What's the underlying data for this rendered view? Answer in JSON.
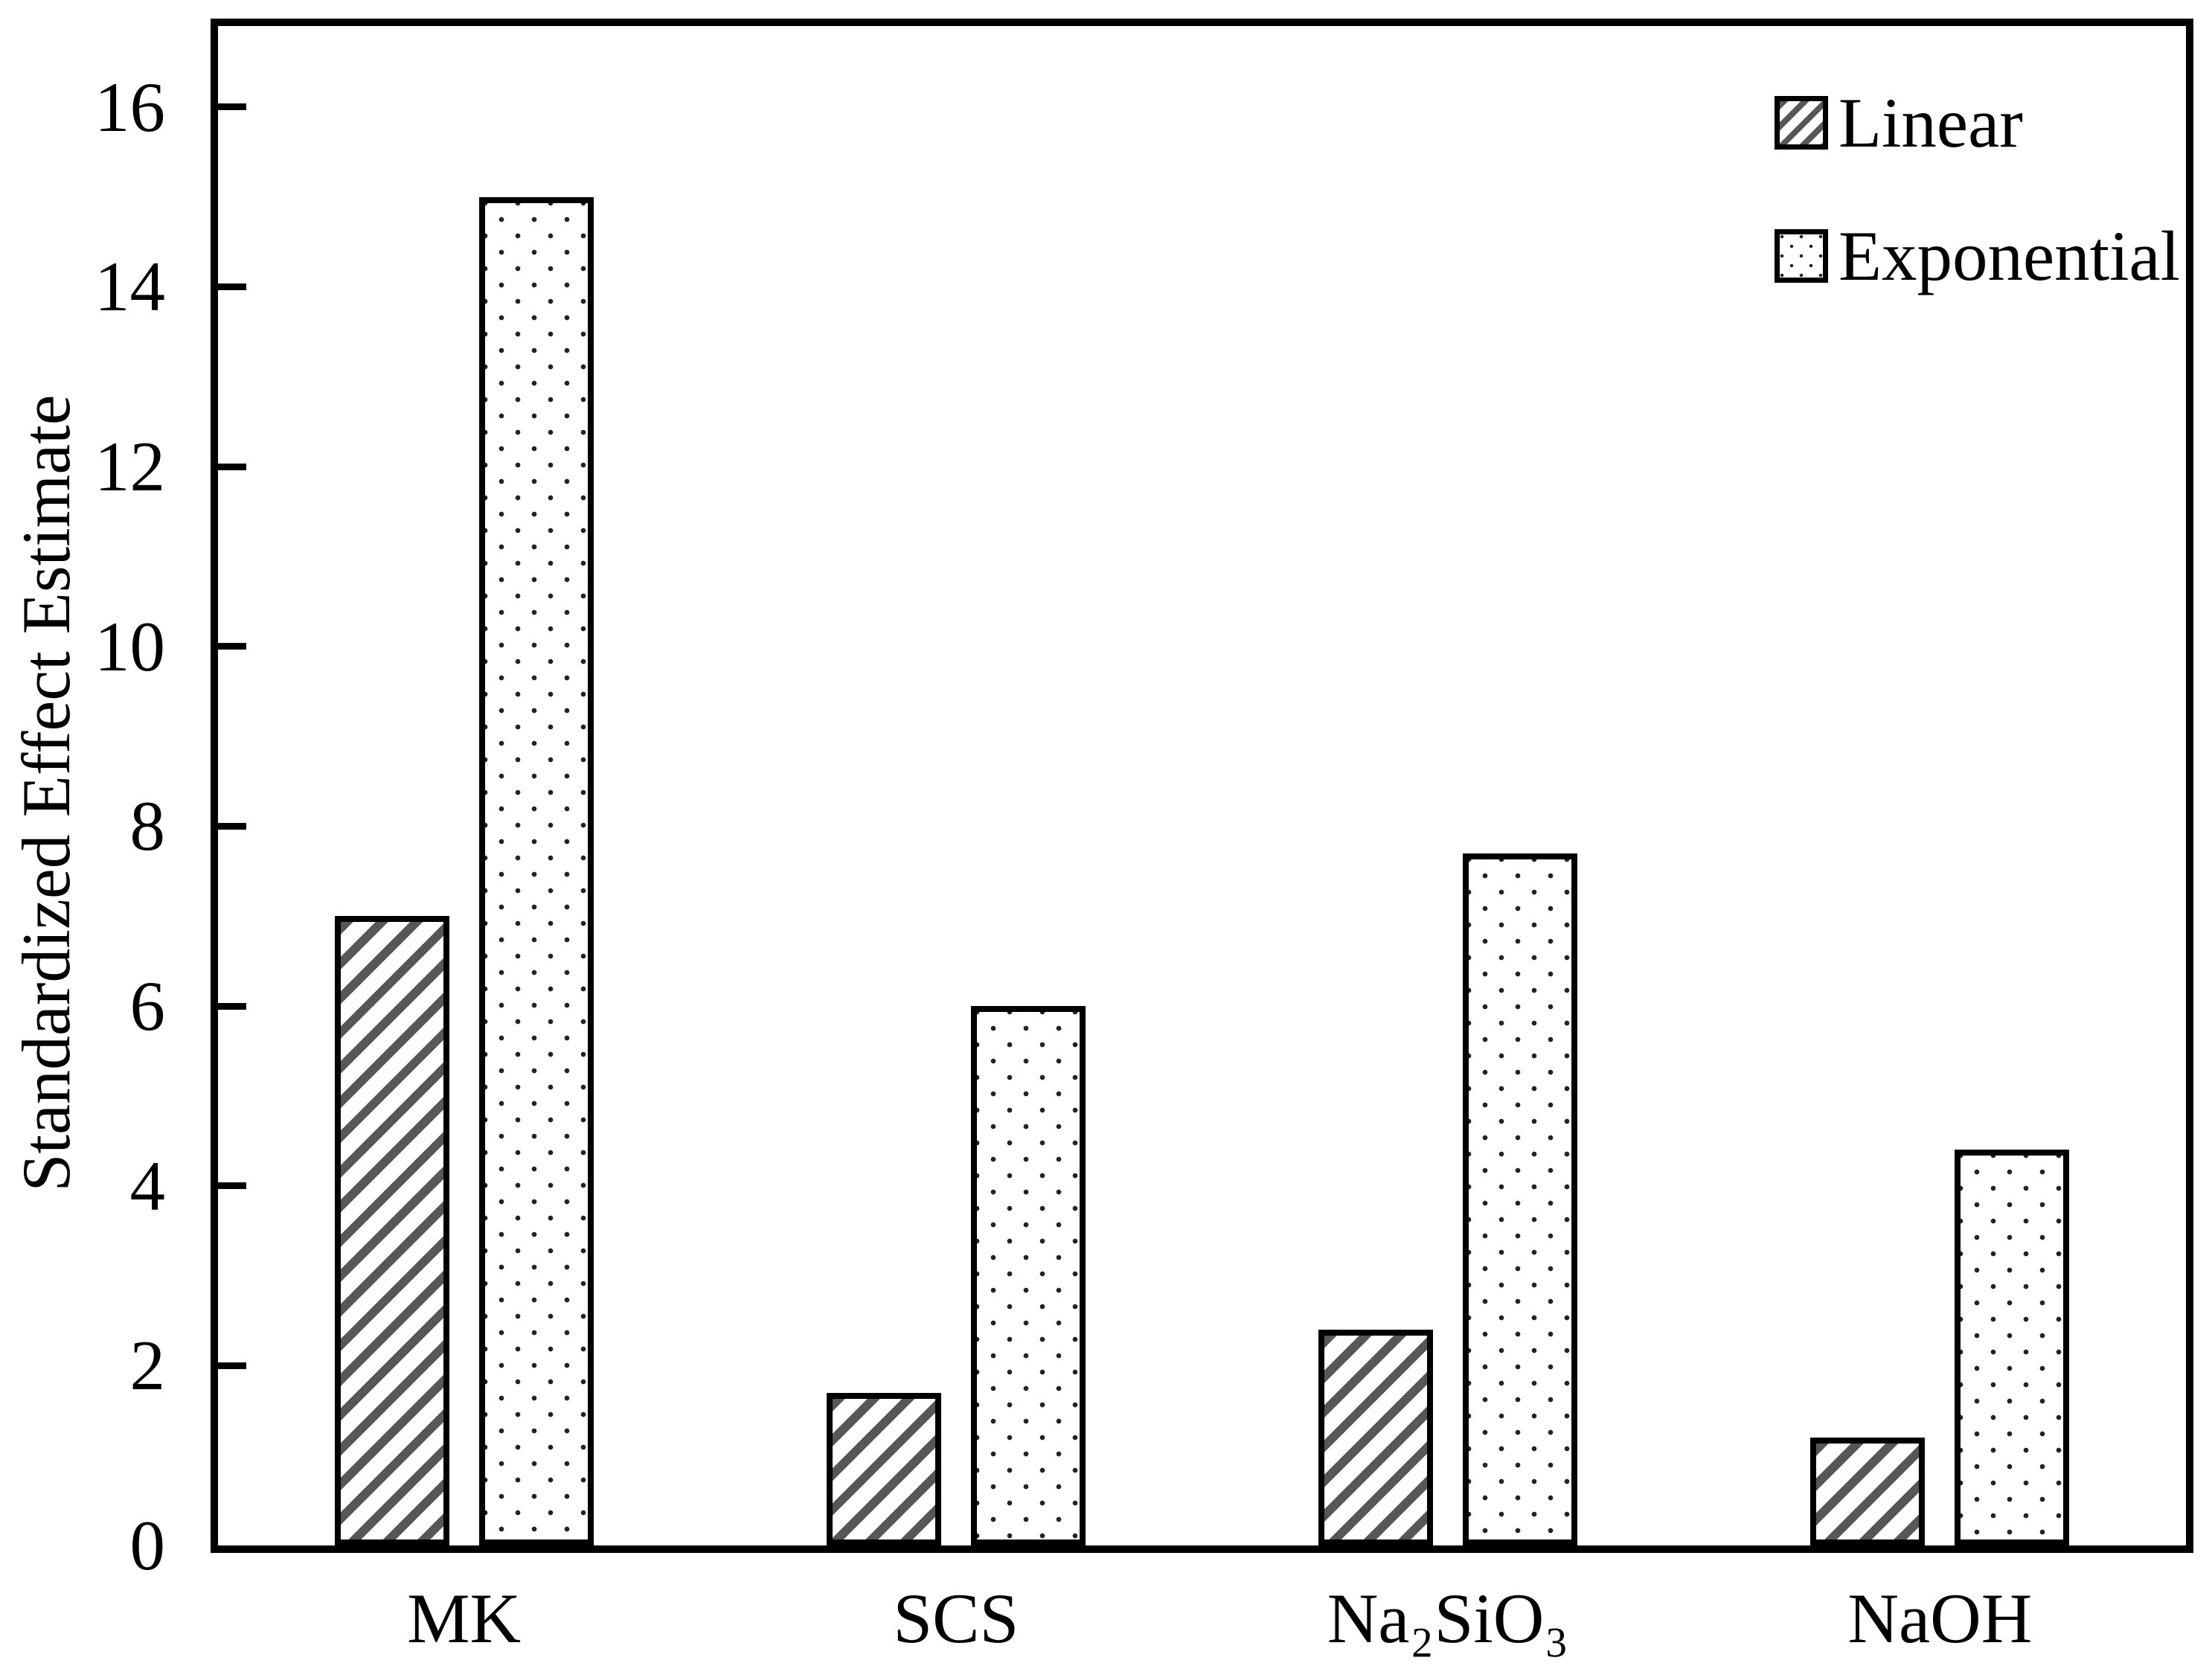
{
  "figure": {
    "background": "#ffffff",
    "ink_color": "#000000",
    "hatch_color": "#575757",
    "dot_color": "#222222"
  },
  "chart_data": {
    "type": "bar",
    "title": "",
    "xlabel": "",
    "ylabel": "Standardized Effect Estimate",
    "categories": [
      "MK",
      "SCS",
      "Na₂SiO₃",
      "NaOH"
    ],
    "series": [
      {
        "name": "Linear",
        "pattern": "diagonal-hatch",
        "values": [
          7.0,
          1.7,
          2.4,
          1.2
        ]
      },
      {
        "name": "Exponential",
        "pattern": "dots",
        "values": [
          15.0,
          6.0,
          7.7,
          4.4
        ]
      }
    ],
    "yticks": [
      0,
      2,
      4,
      6,
      8,
      10,
      12,
      14,
      16
    ],
    "ylim": [
      0,
      16.9
    ],
    "grid": false,
    "legend_position": "top-right"
  },
  "legend": {
    "items": [
      {
        "label": "Linear"
      },
      {
        "label": "Exponential"
      }
    ]
  }
}
